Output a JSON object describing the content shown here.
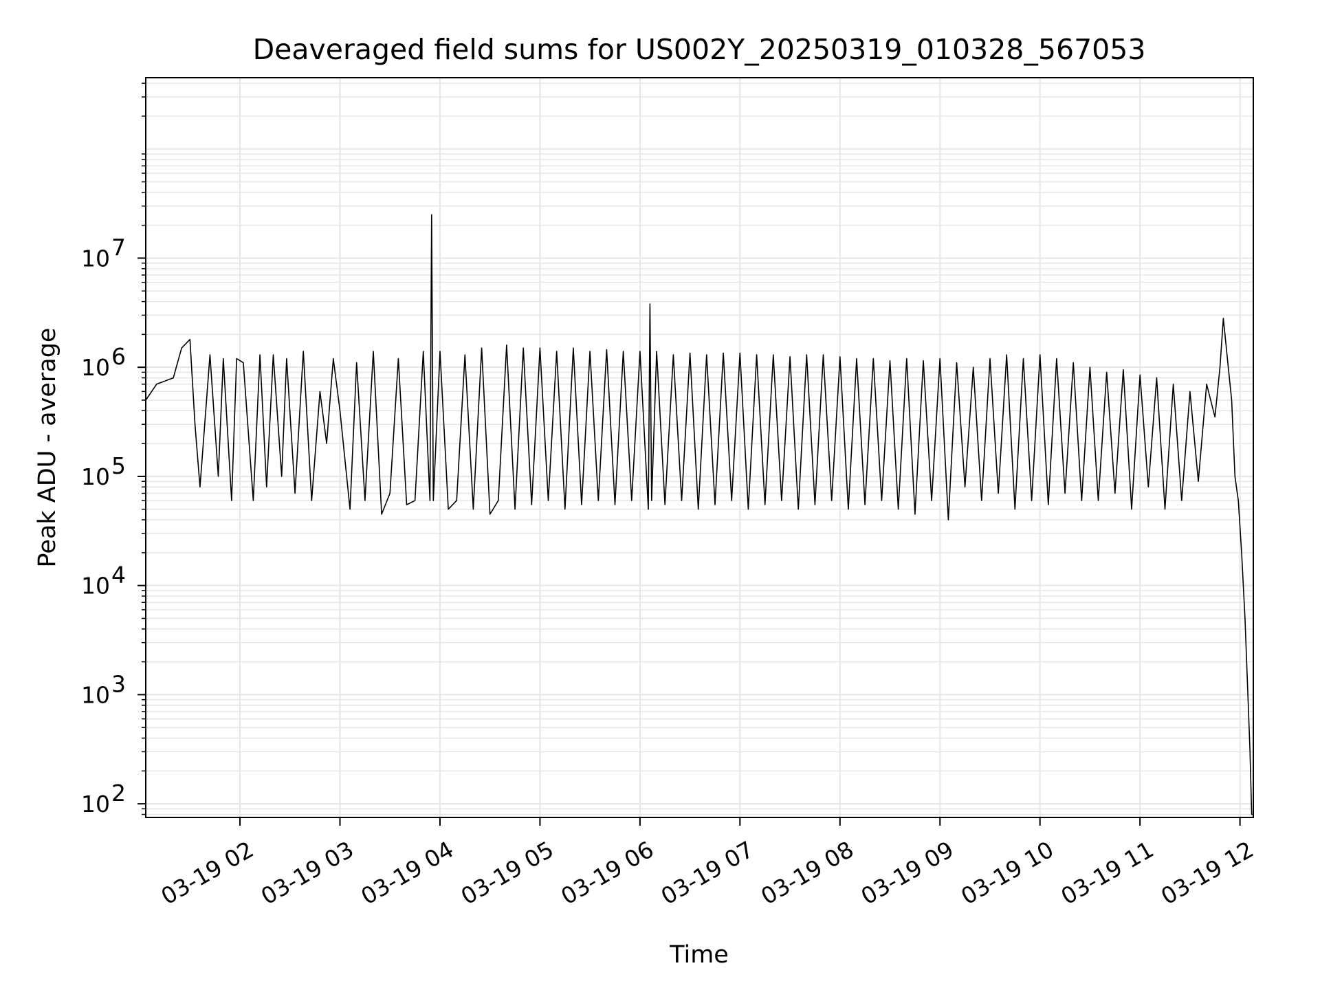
{
  "chart_data": {
    "type": "line",
    "title": "Deaveraged field sums for US002Y_20250319_010328_567053",
    "xlabel": "Time",
    "ylabel": "Peak ADU - average",
    "yscale": "log",
    "ylim": [
      75,
      450000000
    ],
    "xlim": [
      "2025-03-19T01:03:28",
      "2025-03-19T12:08:00"
    ],
    "grid": true,
    "line_color": "#000000",
    "x_ticks": [
      {
        "time": "2025-03-19T02:00:00",
        "label": "03-19 02"
      },
      {
        "time": "2025-03-19T03:00:00",
        "label": "03-19 03"
      },
      {
        "time": "2025-03-19T04:00:00",
        "label": "03-19 04"
      },
      {
        "time": "2025-03-19T05:00:00",
        "label": "03-19 05"
      },
      {
        "time": "2025-03-19T06:00:00",
        "label": "03-19 06"
      },
      {
        "time": "2025-03-19T07:00:00",
        "label": "03-19 07"
      },
      {
        "time": "2025-03-19T08:00:00",
        "label": "03-19 08"
      },
      {
        "time": "2025-03-19T09:00:00",
        "label": "03-19 09"
      },
      {
        "time": "2025-03-19T10:00:00",
        "label": "03-19 10"
      },
      {
        "time": "2025-03-19T11:00:00",
        "label": "03-19 11"
      },
      {
        "time": "2025-03-19T12:00:00",
        "label": "03-19 12"
      }
    ],
    "y_ticks": [
      {
        "value": 100,
        "label": "10",
        "exp": "2"
      },
      {
        "value": 1000,
        "label": "10",
        "exp": "3"
      },
      {
        "value": 10000,
        "label": "10",
        "exp": "4"
      },
      {
        "value": 100000,
        "label": "10",
        "exp": "5"
      },
      {
        "value": 1000000,
        "label": "10",
        "exp": "6"
      },
      {
        "value": 10000000,
        "label": "10",
        "exp": "7"
      }
    ],
    "series": [
      {
        "x": [
          "2025-03-19T01:03:28",
          "2025-03-19T01:10:00",
          "2025-03-19T01:20:00",
          "2025-03-19T01:25:00",
          "2025-03-19T01:30:00",
          "2025-03-19T01:33:00",
          "2025-03-19T01:36:00",
          "2025-03-19T01:42:00",
          "2025-03-19T01:47:00",
          "2025-03-19T01:50:00",
          "2025-03-19T01:55:00",
          "2025-03-19T01:58:00",
          "2025-03-19T02:02:00",
          "2025-03-19T02:08:00",
          "2025-03-19T02:12:00",
          "2025-03-19T02:16:00",
          "2025-03-19T02:20:00",
          "2025-03-19T02:25:00",
          "2025-03-19T02:28:00",
          "2025-03-19T02:33:00",
          "2025-03-19T02:38:00",
          "2025-03-19T02:43:00",
          "2025-03-19T02:48:00",
          "2025-03-19T02:52:00",
          "2025-03-19T02:56:00",
          "2025-03-19T03:00:00",
          "2025-03-19T03:06:00",
          "2025-03-19T03:10:00",
          "2025-03-19T03:15:00",
          "2025-03-19T03:20:00",
          "2025-03-19T03:25:00",
          "2025-03-19T03:30:00",
          "2025-03-19T03:35:00",
          "2025-03-19T03:40:00",
          "2025-03-19T03:45:00",
          "2025-03-19T03:50:00",
          "2025-03-19T03:54:00",
          "2025-03-19T03:55:00",
          "2025-03-19T03:56:00",
          "2025-03-19T04:00:00",
          "2025-03-19T04:05:00",
          "2025-03-19T04:10:00",
          "2025-03-19T04:15:00",
          "2025-03-19T04:20:00",
          "2025-03-19T04:25:00",
          "2025-03-19T04:30:00",
          "2025-03-19T04:35:00",
          "2025-03-19T04:40:00",
          "2025-03-19T04:45:00",
          "2025-03-19T04:50:00",
          "2025-03-19T04:55:00",
          "2025-03-19T05:00:00",
          "2025-03-19T05:05:00",
          "2025-03-19T05:10:00",
          "2025-03-19T05:15:00",
          "2025-03-19T05:20:00",
          "2025-03-19T05:25:00",
          "2025-03-19T05:30:00",
          "2025-03-19T05:35:00",
          "2025-03-19T05:40:00",
          "2025-03-19T05:45:00",
          "2025-03-19T05:50:00",
          "2025-03-19T05:55:00",
          "2025-03-19T06:00:00",
          "2025-03-19T06:05:00",
          "2025-03-19T06:06:00",
          "2025-03-19T06:07:00",
          "2025-03-19T06:10:00",
          "2025-03-19T06:15:00",
          "2025-03-19T06:20:00",
          "2025-03-19T06:25:00",
          "2025-03-19T06:30:00",
          "2025-03-19T06:35:00",
          "2025-03-19T06:40:00",
          "2025-03-19T06:45:00",
          "2025-03-19T06:50:00",
          "2025-03-19T06:55:00",
          "2025-03-19T07:00:00",
          "2025-03-19T07:05:00",
          "2025-03-19T07:10:00",
          "2025-03-19T07:15:00",
          "2025-03-19T07:20:00",
          "2025-03-19T07:25:00",
          "2025-03-19T07:30:00",
          "2025-03-19T07:35:00",
          "2025-03-19T07:40:00",
          "2025-03-19T07:45:00",
          "2025-03-19T07:50:00",
          "2025-03-19T07:55:00",
          "2025-03-19T08:00:00",
          "2025-03-19T08:05:00",
          "2025-03-19T08:10:00",
          "2025-03-19T08:15:00",
          "2025-03-19T08:20:00",
          "2025-03-19T08:25:00",
          "2025-03-19T08:30:00",
          "2025-03-19T08:35:00",
          "2025-03-19T08:40:00",
          "2025-03-19T08:45:00",
          "2025-03-19T08:50:00",
          "2025-03-19T08:55:00",
          "2025-03-19T09:00:00",
          "2025-03-19T09:05:00",
          "2025-03-19T09:10:00",
          "2025-03-19T09:15:00",
          "2025-03-19T09:20:00",
          "2025-03-19T09:25:00",
          "2025-03-19T09:30:00",
          "2025-03-19T09:35:00",
          "2025-03-19T09:40:00",
          "2025-03-19T09:45:00",
          "2025-03-19T09:50:00",
          "2025-03-19T09:55:00",
          "2025-03-19T10:00:00",
          "2025-03-19T10:05:00",
          "2025-03-19T10:10:00",
          "2025-03-19T10:15:00",
          "2025-03-19T10:20:00",
          "2025-03-19T10:25:00",
          "2025-03-19T10:30:00",
          "2025-03-19T10:35:00",
          "2025-03-19T10:40:00",
          "2025-03-19T10:45:00",
          "2025-03-19T10:50:00",
          "2025-03-19T10:55:00",
          "2025-03-19T11:00:00",
          "2025-03-19T11:05:00",
          "2025-03-19T11:10:00",
          "2025-03-19T11:15:00",
          "2025-03-19T11:20:00",
          "2025-03-19T11:25:00",
          "2025-03-19T11:30:00",
          "2025-03-19T11:35:00",
          "2025-03-19T11:40:00",
          "2025-03-19T11:45:00",
          "2025-03-19T11:48:00",
          "2025-03-19T11:50:00",
          "2025-03-19T11:53:00",
          "2025-03-19T11:55:00",
          "2025-03-19T11:57:00",
          "2025-03-19T11:59:00",
          "2025-03-19T12:01:00",
          "2025-03-19T12:03:00",
          "2025-03-19T12:05:00",
          "2025-03-19T12:06:00",
          "2025-03-19T12:07:00",
          "2025-03-19T12:07:30"
        ],
        "y": [
          500000,
          700000,
          800000,
          1500000,
          1800000,
          300000,
          80000,
          1300000,
          100000,
          1200000,
          60000,
          1200000,
          1100000,
          60000,
          1300000,
          80000,
          1300000,
          100000,
          1200000,
          70000,
          1400000,
          60000,
          600000,
          200000,
          1200000,
          400000,
          50000,
          1100000,
          60000,
          1400000,
          45000,
          70000,
          1200000,
          55000,
          60000,
          1400000,
          60000,
          25000000,
          60000,
          1400000,
          50000,
          60000,
          1300000,
          50000,
          1500000,
          45000,
          60000,
          1600000,
          50000,
          1500000,
          55000,
          1500000,
          60000,
          1400000,
          50000,
          1500000,
          55000,
          1400000,
          60000,
          1450000,
          55000,
          1400000,
          60000,
          1400000,
          50000,
          3800000,
          60000,
          1400000,
          55000,
          1300000,
          60000,
          1350000,
          50000,
          1300000,
          55000,
          1350000,
          60000,
          1350000,
          50000,
          1300000,
          55000,
          1300000,
          60000,
          1250000,
          50000,
          1300000,
          55000,
          1300000,
          60000,
          1250000,
          50000,
          1200000,
          55000,
          1200000,
          60000,
          1150000,
          50000,
          1200000,
          45000,
          1150000,
          60000,
          1200000,
          40000,
          1100000,
          80000,
          1000000,
          60000,
          1200000,
          70000,
          1300000,
          50000,
          1200000,
          60000,
          1300000,
          55000,
          1200000,
          70000,
          1100000,
          60000,
          1000000,
          60000,
          900000,
          70000,
          950000,
          50000,
          850000,
          80000,
          800000,
          50000,
          700000,
          60000,
          600000,
          90000,
          700000,
          350000,
          1000000,
          2800000,
          1000000,
          500000,
          100000,
          60000,
          20000,
          5000,
          800,
          300,
          80,
          80
        ],
        "name": ""
      }
    ]
  }
}
